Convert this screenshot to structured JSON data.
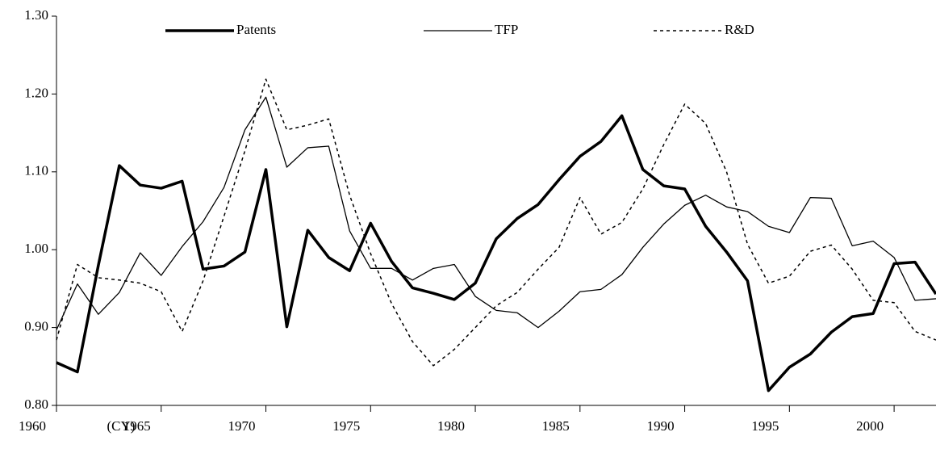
{
  "chart_data": {
    "type": "line",
    "x_label": "(CY)",
    "x": [
      1960,
      1961,
      1962,
      1963,
      1964,
      1965,
      1966,
      1967,
      1968,
      1969,
      1970,
      1971,
      1972,
      1973,
      1974,
      1975,
      1976,
      1977,
      1978,
      1979,
      1980,
      1981,
      1982,
      1983,
      1984,
      1985,
      1986,
      1987,
      1988,
      1989,
      1990,
      1991,
      1992,
      1993,
      1994,
      1995,
      1996,
      1997,
      1998,
      1999,
      2000,
      2001,
      2002
    ],
    "series": [
      {
        "name": "Patents",
        "color": "#000000",
        "width": 3.5,
        "dashed": false,
        "values": [
          0.855,
          0.843,
          0.98,
          1.108,
          1.083,
          1.079,
          1.088,
          0.975,
          0.979,
          0.997,
          1.103,
          0.901,
          1.025,
          0.99,
          0.973,
          1.034,
          0.985,
          0.951,
          0.944,
          0.936,
          0.957,
          1.014,
          1.04,
          1.058,
          1.09,
          1.12,
          1.139,
          1.172,
          1.103,
          1.082,
          1.078,
          1.03,
          0.997,
          0.96,
          0.819,
          0.849,
          0.866,
          0.894,
          0.914,
          0.918,
          0.982,
          0.984,
          0.943
        ]
      },
      {
        "name": "TFP",
        "color": "#000000",
        "width": 1.3,
        "dashed": false,
        "values": [
          0.897,
          0.956,
          0.917,
          0.945,
          0.996,
          0.967,
          1.004,
          1.036,
          1.08,
          1.154,
          1.196,
          1.106,
          1.131,
          1.133,
          1.024,
          0.976,
          0.976,
          0.961,
          0.976,
          0.981,
          0.94,
          0.922,
          0.919,
          0.9,
          0.921,
          0.946,
          0.949,
          0.968,
          1.003,
          1.033,
          1.057,
          1.07,
          1.055,
          1.049,
          1.03,
          1.022,
          1.067,
          1.066,
          1.005,
          1.011,
          0.99,
          0.935,
          0.937
        ]
      },
      {
        "name": "R&D",
        "color": "#000000",
        "width": 1.5,
        "dashed": true,
        "values": [
          0.884,
          0.981,
          0.964,
          0.961,
          0.957,
          0.946,
          0.895,
          0.96,
          1.043,
          1.127,
          1.219,
          1.154,
          1.16,
          1.168,
          1.07,
          0.995,
          0.931,
          0.882,
          0.851,
          0.872,
          0.9,
          0.928,
          0.945,
          0.975,
          1.003,
          1.067,
          1.02,
          1.035,
          1.078,
          1.135,
          1.187,
          1.162,
          1.1,
          1.007,
          0.957,
          0.966,
          0.998,
          1.006,
          0.975,
          0.935,
          0.932,
          0.895,
          0.884
        ]
      }
    ],
    "xlim": [
      1960,
      2002
    ],
    "xticks": [
      1960,
      1965,
      1970,
      1975,
      1980,
      1985,
      1990,
      1995,
      2000
    ],
    "ylim": [
      0.8,
      1.3
    ],
    "yticks": [
      {
        "value": 0.8,
        "label": "0.80"
      },
      {
        "value": 0.9,
        "label": "0.90"
      },
      {
        "value": 1.0,
        "label": "1.00"
      },
      {
        "value": 1.1,
        "label": "1.10"
      },
      {
        "value": 1.2,
        "label": "1.20"
      },
      {
        "value": 1.3,
        "label": "1.30"
      }
    ],
    "legend": "top"
  }
}
